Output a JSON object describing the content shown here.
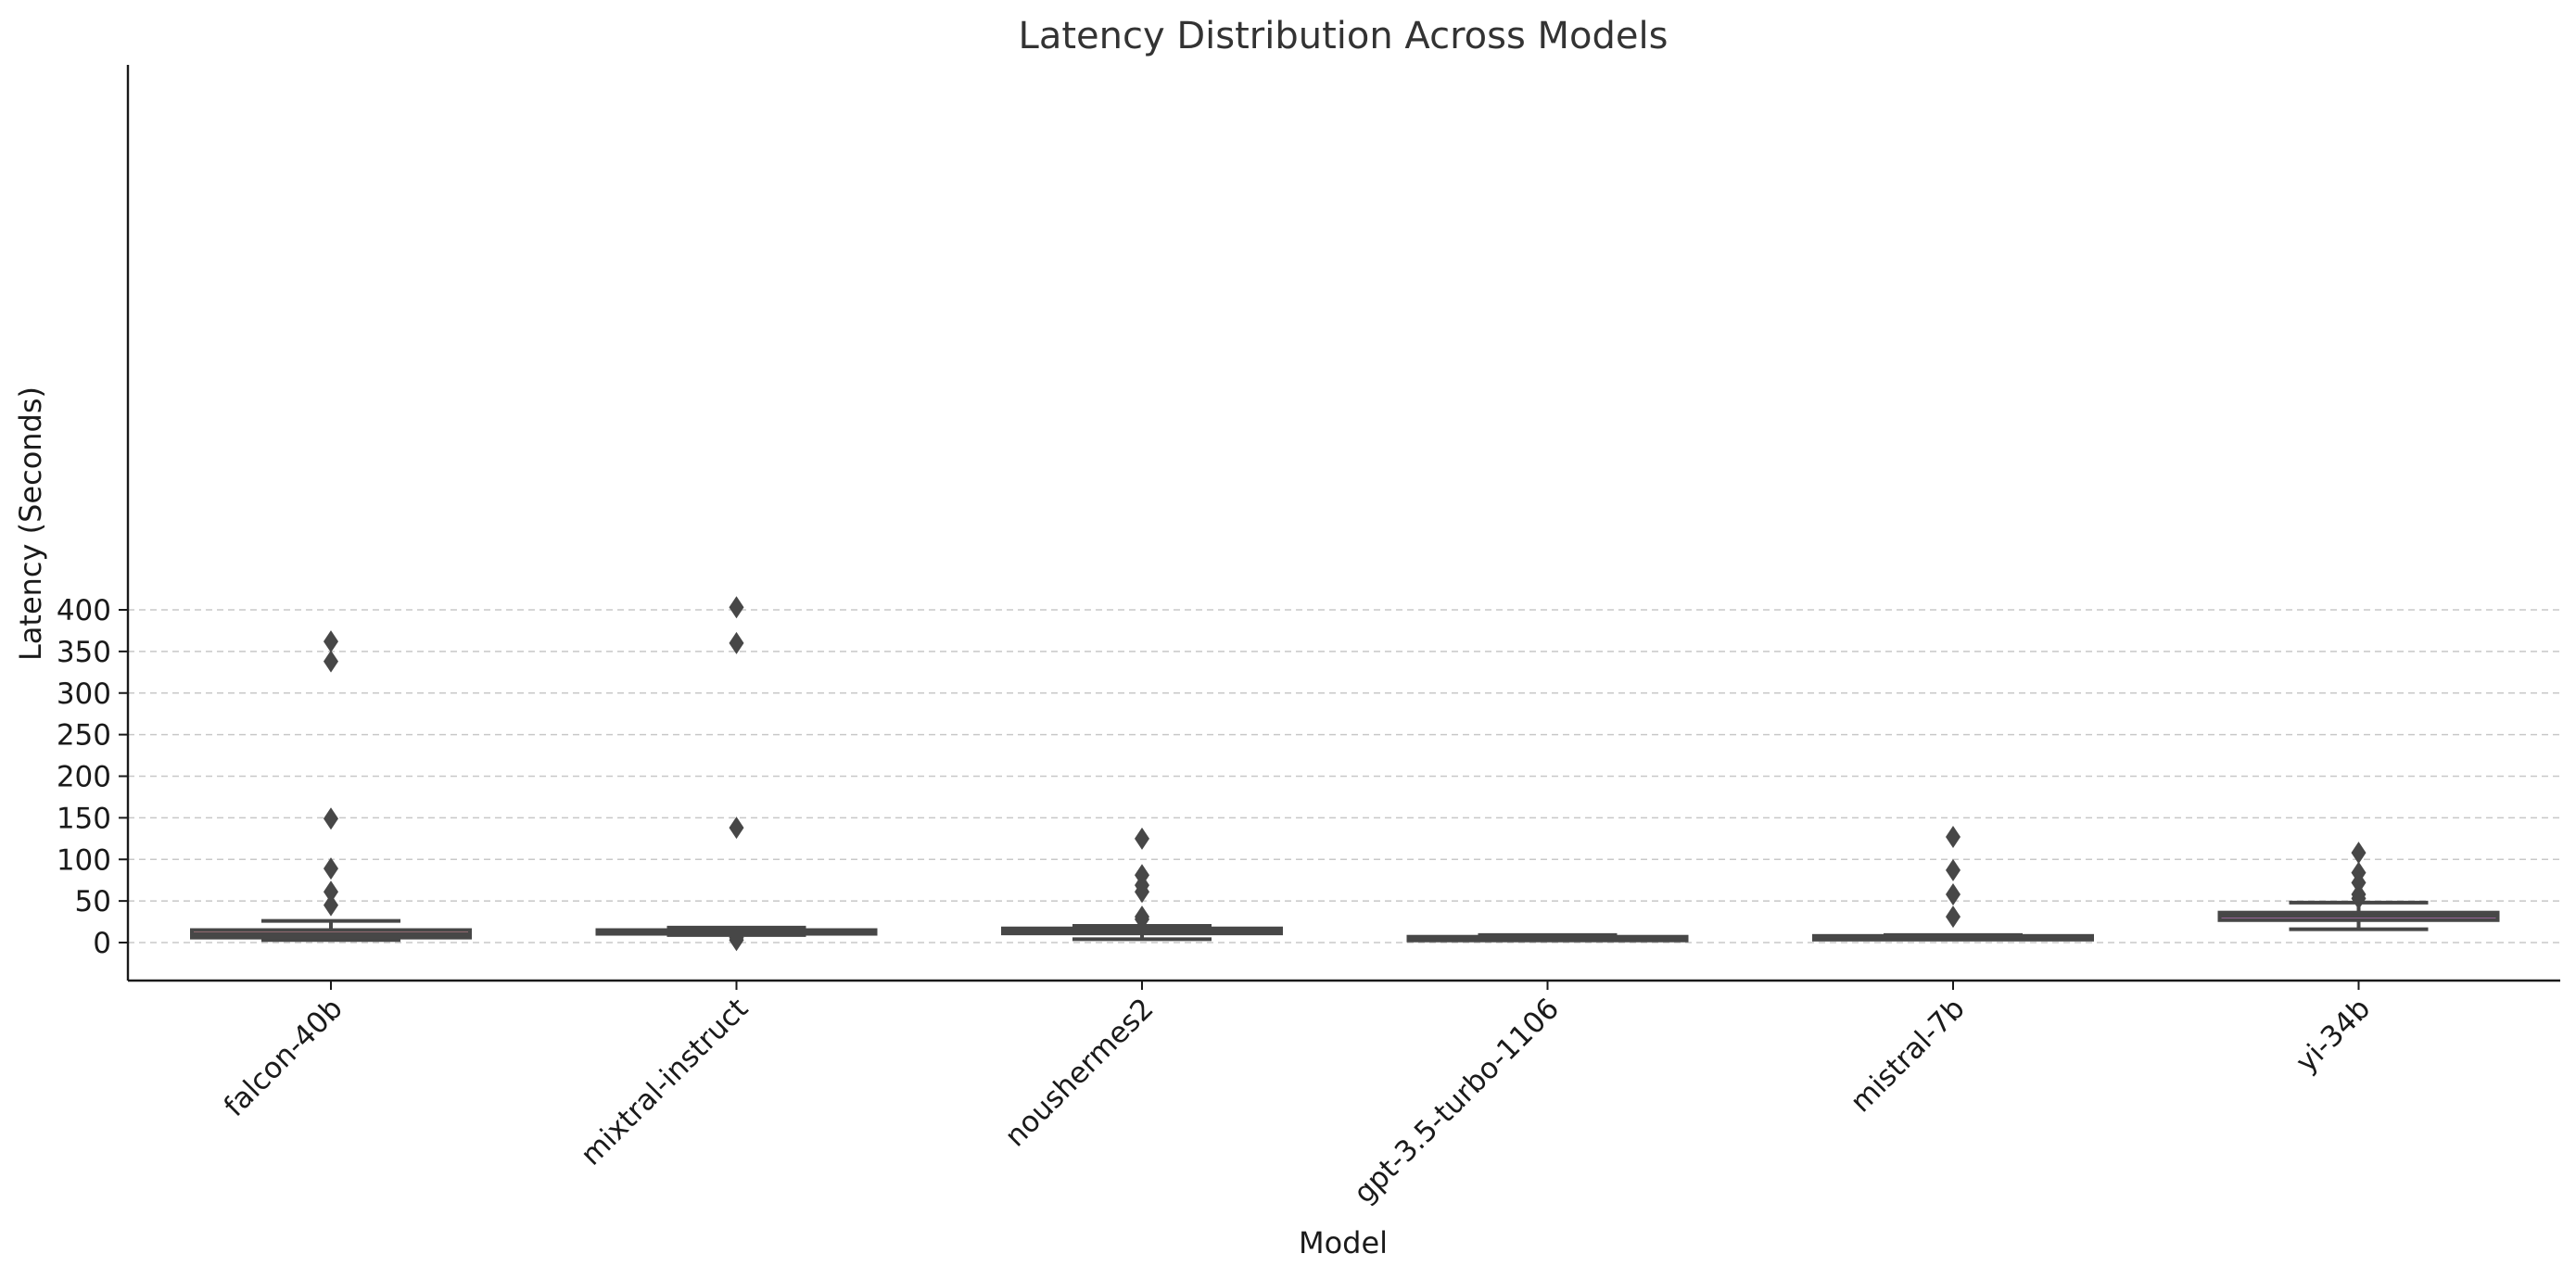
{
  "chart_data": {
    "type": "box",
    "title": "Latency Distribution Across Models",
    "xlabel": "Model",
    "ylabel": "Latency (Seconds)",
    "ylim": [
      -18,
      422
    ],
    "yticks": [
      0,
      50,
      100,
      150,
      200,
      250,
      300,
      350,
      400
    ],
    "grid": "y-dashed",
    "categories": [
      "falcon-40b",
      "mixtral-instruct",
      "noushermes2",
      "gpt-3.5-turbo-1106",
      "mistral-7b",
      "yi-34b"
    ],
    "series": [
      {
        "name": "falcon-40b",
        "color": "#e8959f",
        "whisker_low": 3,
        "q1": 6,
        "median": 10,
        "q3": 15,
        "whisker_high": 26,
        "outliers": [
          362,
          338,
          149,
          89,
          61,
          45
        ]
      },
      {
        "name": "mixtral-instruct",
        "color": "#b8944f",
        "whisker_low": 9,
        "q1": 12,
        "median": 14,
        "q3": 15,
        "whisker_high": 18,
        "outliers": [
          403,
          360,
          138,
          6,
          3
        ]
      },
      {
        "name": "noushermes2",
        "color": "#4a9c3c",
        "whisker_low": 4,
        "q1": 11,
        "median": 14,
        "q3": 17,
        "whisker_high": 20,
        "outliers": [
          125,
          81,
          69,
          61,
          31,
          28
        ]
      },
      {
        "name": "gpt-3.5-turbo-1106",
        "color": "#3aa8a0",
        "whisker_low": 5,
        "q1": 5,
        "median": 6,
        "q3": 7,
        "whisker_high": 9,
        "outliers": []
      },
      {
        "name": "mistral-7b",
        "color": "#4f8fd6",
        "whisker_low": 5,
        "q1": 6,
        "median": 7,
        "q3": 8,
        "whisker_high": 9,
        "outliers": [
          127,
          87,
          58,
          31
        ]
      },
      {
        "name": "yi-34b",
        "color": "#e07fe3",
        "whisker_low": 16,
        "q1": 27,
        "median": 32,
        "q3": 36,
        "whisker_high": 48,
        "outliers": [
          108,
          84,
          72,
          58,
          53
        ]
      }
    ]
  }
}
